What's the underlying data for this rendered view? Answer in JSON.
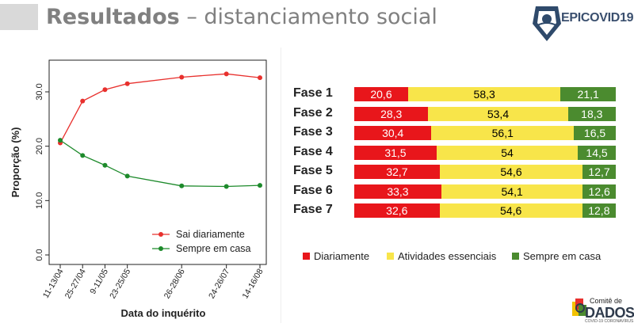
{
  "header": {
    "title_strong": "Resultados",
    "title_rest": " – distanciamento social",
    "logo_prefix": "EPI",
    "logo_rest": "COVID19"
  },
  "footer": {
    "line1": "Comitê de",
    "line2": "DADOS",
    "line3": "COVID-19 CORONAVÍRUS"
  },
  "colors": {
    "sai": "#e8302d",
    "casa": "#1d8a2b",
    "diariamente": "#e8161b",
    "atividades": "#f8e54a",
    "sempre": "#4b8b2f"
  },
  "chart_data": [
    {
      "type": "line",
      "title": "",
      "xlabel": "Data do inquérito",
      "ylabel": "Proporção (%)",
      "categories": [
        "11-13/04",
        "25-27/04",
        "9-11/05",
        "23-25/05",
        "26-28/06",
        "24-26/07",
        "14-16/08"
      ],
      "x": [
        0,
        14,
        28,
        42,
        76,
        104,
        125
      ],
      "ylim": [
        0,
        35
      ],
      "yticks": [
        "0.0",
        "10.0",
        "20.0",
        "30.0"
      ],
      "ytick_values": [
        0,
        10,
        20,
        30
      ],
      "series": [
        {
          "name": "Sai diariamente",
          "values": [
            20.6,
            28.3,
            30.4,
            31.5,
            32.7,
            33.3,
            32.6
          ]
        },
        {
          "name": "Sempre em casa",
          "values": [
            21.1,
            18.3,
            16.5,
            14.5,
            12.7,
            12.6,
            12.8
          ]
        }
      ],
      "legend_position": "bottom-right"
    },
    {
      "type": "bar",
      "orientation": "horizontal-stacked",
      "categories": [
        "Fase 1",
        "Fase 2",
        "Fase 3",
        "Fase 4",
        "Fase 5",
        "Fase 6",
        "Fase 7"
      ],
      "series": [
        {
          "name": "Diariamente",
          "values": [
            20.6,
            28.3,
            30.4,
            31.5,
            32.7,
            33.3,
            32.6
          ],
          "labels": [
            "20,6",
            "28,3",
            "30,4",
            "31,5",
            "32,7",
            "33,3",
            "32,6"
          ]
        },
        {
          "name": "Atividades essenciais",
          "values": [
            58.3,
            53.4,
            56.1,
            54,
            54.6,
            54.1,
            54.6
          ],
          "labels": [
            "58,3",
            "53,4",
            "56,1",
            "54",
            "54,6",
            "54,1",
            "54,6"
          ]
        },
        {
          "name": "Sempre em casa",
          "values": [
            21.1,
            18.3,
            16.5,
            14.5,
            12.7,
            12.6,
            12.8
          ],
          "labels": [
            "21,1",
            "18,3",
            "16,5",
            "14,5",
            "12,7",
            "12,6",
            "12,8"
          ]
        }
      ],
      "legend_position": "bottom"
    }
  ]
}
